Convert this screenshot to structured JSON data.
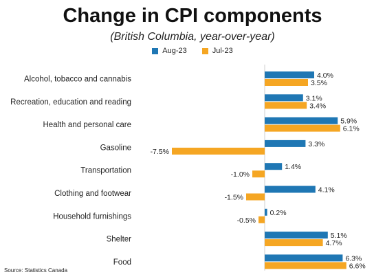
{
  "title": "Change in CPI components",
  "subtitle": "(British Columbia, year-over-year)",
  "source": "Source: Statistics Canada",
  "colors": {
    "aug": "#1f77b4",
    "jul": "#f5a623"
  },
  "chart_data": {
    "type": "bar",
    "orientation": "horizontal",
    "categories": [
      "Alcohol, tobacco and cannabis",
      "Recreation, education and reading",
      "Health and personal care",
      "Gasoline",
      "Transportation",
      "Clothing and footwear",
      "Household furnishings",
      "Shelter",
      "Food"
    ],
    "series": [
      {
        "name": "Aug-23",
        "values": [
          4.0,
          3.1,
          5.9,
          3.3,
          1.4,
          4.1,
          0.2,
          5.1,
          6.3
        ],
        "labels": [
          "4.0%",
          "3.1%",
          "5.9%",
          "3.3%",
          "1.4%",
          "4.1%",
          "0.2%",
          "5.1%",
          "6.3%"
        ]
      },
      {
        "name": "Jul-23",
        "values": [
          3.5,
          3.4,
          6.1,
          -7.5,
          -1.0,
          -1.5,
          -0.5,
          4.7,
          6.6
        ],
        "labels": [
          "3.5%",
          "3.4%",
          "6.1%",
          "-7.5%",
          "-1.0%",
          "-1.5%",
          "-0.5%",
          "4.7%",
          "6.6%"
        ]
      }
    ],
    "legend_position": "top-center",
    "grid": false
  }
}
